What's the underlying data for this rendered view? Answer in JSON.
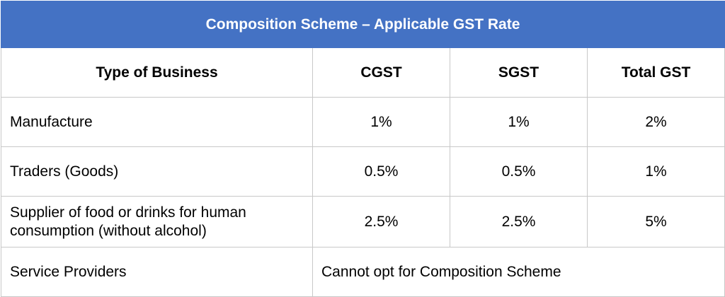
{
  "table": {
    "title": "Composition Scheme – Applicable GST Rate",
    "headers": [
      "Type of Business",
      "CGST",
      "SGST",
      "Total GST"
    ],
    "rows": [
      {
        "type": "Manufacture",
        "cgst": "1%",
        "sgst": "1%",
        "total": "2%"
      },
      {
        "type": "Traders (Goods)",
        "cgst": "0.5%",
        "sgst": "0.5%",
        "total": "1%"
      },
      {
        "type_line1": "Supplier of food or drinks for human",
        "type_line2": "consumption (without alcohol)",
        "cgst": "2.5%",
        "sgst": "2.5%",
        "total": "5%"
      }
    ],
    "service_row": {
      "type": "Service Providers",
      "note": "Cannot opt for Composition Scheme"
    }
  },
  "colors": {
    "header_bg": "#4472c4",
    "header_text": "#ffffff",
    "border": "#c8c8c8"
  }
}
